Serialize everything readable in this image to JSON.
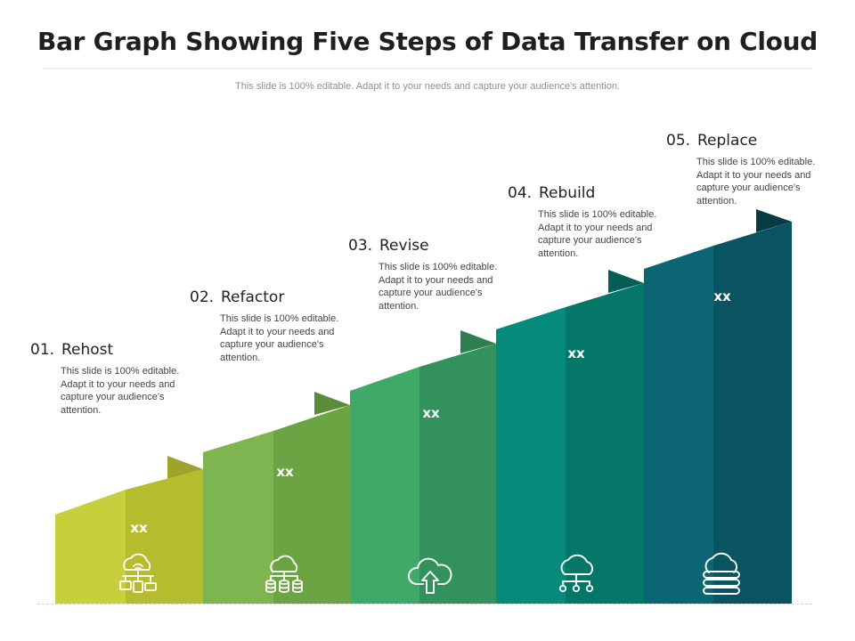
{
  "title": "Bar Graph Showing Five Steps of Data Transfer on Cloud",
  "subtitle": "This slide is 100% editable. Adapt it to your needs and capture your audience's attention.",
  "steps": [
    {
      "number": "01.",
      "title": "Rehost",
      "description": "This slide is 100% editable. Adapt it to your needs and capture your audience's attention.",
      "value_label": "xx",
      "icon": "cloud-devices-icon",
      "color_light": "#c8cf3c",
      "color_dark": "#b5bd2e",
      "color_tab": "#9ea32b"
    },
    {
      "number": "02.",
      "title": "Refactor",
      "description": "This slide is 100% editable. Adapt it to your needs and capture your audience's attention.",
      "value_label": "xx",
      "icon": "cloud-database-icon",
      "color_light": "#7fb550",
      "color_dark": "#6ca444",
      "color_tab": "#5c8c38"
    },
    {
      "number": "03.",
      "title": "Revise",
      "description": "This slide is 100% editable. Adapt it to your needs and capture your audience's attention.",
      "value_label": "xx",
      "icon": "cloud-upload-icon",
      "color_light": "#40a96a",
      "color_dark": "#33915c",
      "color_tab": "#2e7f4f"
    },
    {
      "number": "04.",
      "title": "Rebuild",
      "description": "This slide is 100% editable. Adapt it to your needs and capture your audience's attention.",
      "value_label": "xx",
      "icon": "cloud-network-icon",
      "color_light": "#068a7c",
      "color_dark": "#047769",
      "color_tab": "#045e55"
    },
    {
      "number": "05.",
      "title": "Replace",
      "description": "This slide is 100% editable. Adapt it to your needs and capture your audience's attention.",
      "value_label": "xx",
      "icon": "cloud-server-icon",
      "color_light": "#0c6573",
      "color_dark": "#0a5360",
      "color_tab": "#073c45"
    }
  ]
}
